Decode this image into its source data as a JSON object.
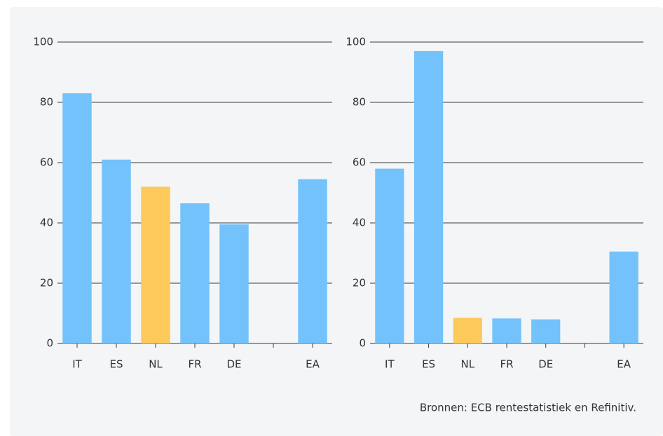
{
  "chart_data": [
    {
      "type": "bar",
      "categories": [
        "IT",
        "ES",
        "NL",
        "FR",
        "DE",
        null,
        "EA"
      ],
      "values": [
        83,
        61,
        52,
        46.5,
        39.5,
        null,
        54.5
      ],
      "colors": [
        "#73c2fb",
        "#73c2fb",
        "#fdc95b",
        "#73c2fb",
        "#73c2fb",
        "#73c2fb",
        "#73c2fb"
      ],
      "ylim": [
        0,
        100
      ],
      "yticks": [
        0,
        20,
        40,
        60,
        80,
        100
      ],
      "grid": true
    },
    {
      "type": "bar",
      "categories": [
        "IT",
        "ES",
        "NL",
        "FR",
        "DE",
        null,
        "EA"
      ],
      "values": [
        58,
        97,
        8.5,
        8.3,
        8,
        null,
        30.5
      ],
      "colors": [
        "#73c2fb",
        "#73c2fb",
        "#fdc95b",
        "#73c2fb",
        "#73c2fb",
        "#73c2fb",
        "#73c2fb"
      ],
      "ylim": [
        0,
        100
      ],
      "yticks": [
        0,
        20,
        40,
        60,
        80,
        100
      ],
      "grid": true
    }
  ],
  "source": "Bronnen: ECB rentestatistiek en Refinitiv."
}
